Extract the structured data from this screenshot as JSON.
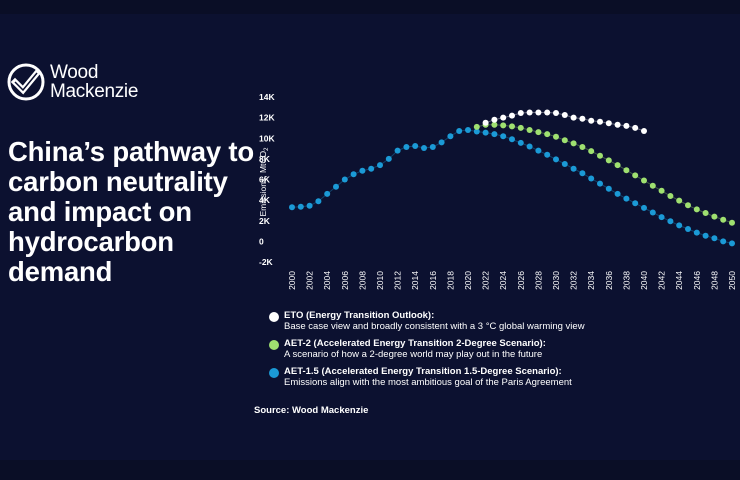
{
  "brand": {
    "line1": "Wood",
    "line2": "Mackenzie",
    "logo_icon": "wood-mackenzie-check-icon"
  },
  "headline": "China’s pathway to carbon neutrality and impact on hydrocarbon demand",
  "source": "Source: Wood Mackenzie",
  "colors": {
    "background": "#0c1130",
    "eto": "#ffffff",
    "aet2": "#9fe070",
    "aet15": "#1b9ad6"
  },
  "chart_data": {
    "type": "scatter",
    "title": "",
    "xlabel": "",
    "ylabel": "Emissions, MtCO2",
    "ylim": [
      -2000,
      14000
    ],
    "xlim": [
      2000,
      2050
    ],
    "yticks": [
      {
        "value": 14000,
        "label": "14K"
      },
      {
        "value": 12000,
        "label": "12K"
      },
      {
        "value": 10000,
        "label": "10K"
      },
      {
        "value": 8000,
        "label": "8K"
      },
      {
        "value": 6000,
        "label": "6K"
      },
      {
        "value": 4000,
        "label": "4K"
      },
      {
        "value": 2000,
        "label": "2K"
      },
      {
        "value": 0,
        "label": "0"
      },
      {
        "value": -2000,
        "label": "-2K"
      }
    ],
    "xticks": [
      2000,
      2002,
      2004,
      2006,
      2008,
      2010,
      2012,
      2014,
      2016,
      2018,
      2020,
      2022,
      2024,
      2026,
      2028,
      2030,
      2032,
      2034,
      2036,
      2038,
      2040,
      2042,
      2044,
      2046,
      2048,
      2050
    ],
    "grid": false,
    "legend_position": "bottom",
    "series": [
      {
        "name": "AET-1.5 (Accelerated Energy Transition 1.5-Degree Scenario):",
        "description": "Emissions align with the most ambitious goal of the Paris Agreement",
        "color": "#1b9ad6",
        "x": [
          2000,
          2001,
          2002,
          2003,
          2004,
          2005,
          2006,
          2007,
          2008,
          2009,
          2010,
          2011,
          2012,
          2013,
          2014,
          2015,
          2016,
          2017,
          2018,
          2019,
          2020,
          2021,
          2022,
          2023,
          2024,
          2025,
          2026,
          2027,
          2028,
          2029,
          2030,
          2031,
          2032,
          2033,
          2034,
          2035,
          2036,
          2037,
          2038,
          2039,
          2040,
          2041,
          2042,
          2043,
          2044,
          2045,
          2046,
          2047,
          2048,
          2049,
          2050
        ],
        "y": [
          3300,
          3350,
          3450,
          3900,
          4600,
          5300,
          6000,
          6500,
          6850,
          7050,
          7400,
          8000,
          8800,
          9150,
          9250,
          9050,
          9150,
          9600,
          10200,
          10700,
          10800,
          10650,
          10550,
          10400,
          10200,
          9900,
          9550,
          9200,
          8800,
          8400,
          7950,
          7500,
          7050,
          6600,
          6100,
          5600,
          5100,
          4600,
          4150,
          3700,
          3250,
          2800,
          2350,
          1950,
          1550,
          1200,
          850,
          550,
          300,
          0,
          -200
        ]
      },
      {
        "name": "AET-2 (Accelerated Energy Transition 2-Degree Scenario):",
        "description": "A scenario of how a 2-degree world may play out in the future",
        "color": "#9fe070",
        "x": [
          2021,
          2022,
          2023,
          2024,
          2025,
          2026,
          2027,
          2028,
          2029,
          2030,
          2031,
          2032,
          2033,
          2034,
          2035,
          2036,
          2037,
          2038,
          2039,
          2040,
          2041,
          2042,
          2043,
          2044,
          2045,
          2046,
          2047,
          2048,
          2049,
          2050
        ],
        "y": [
          11100,
          11300,
          11300,
          11250,
          11150,
          11000,
          10800,
          10600,
          10400,
          10150,
          9800,
          9500,
          9150,
          8750,
          8300,
          7850,
          7400,
          6900,
          6400,
          5900,
          5400,
          4900,
          4400,
          3950,
          3500,
          3100,
          2750,
          2400,
          2100,
          1800
        ]
      },
      {
        "name": "ETO (Energy Transition Outlook):",
        "description": "Base case view and broadly consistent with a 3 °C global warming view",
        "color": "#ffffff",
        "x": [
          2022,
          2023,
          2024,
          2025,
          2026,
          2027,
          2028,
          2029,
          2030,
          2031,
          2032,
          2033,
          2034,
          2035,
          2036,
          2037,
          2038,
          2039,
          2040
        ],
        "y": [
          11500,
          11800,
          12000,
          12200,
          12450,
          12500,
          12500,
          12500,
          12450,
          12250,
          12000,
          11900,
          11700,
          11600,
          11450,
          11300,
          11200,
          11000,
          10700
        ]
      }
    ]
  }
}
